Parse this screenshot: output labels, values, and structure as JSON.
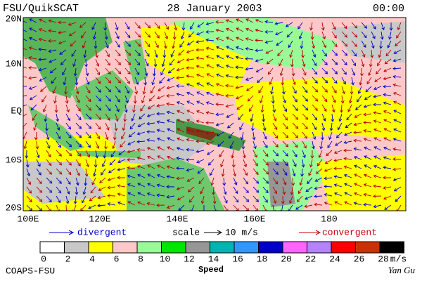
{
  "header": {
    "left": "FSU/QuikSCAT",
    "center": "28 January 2003",
    "right": "00:00"
  },
  "map": {
    "lat_labels": [
      "20N",
      "10N",
      "EQ",
      "10S",
      "20S"
    ],
    "lon_labels": [
      "100E",
      "120E",
      "140E",
      "160E",
      "180"
    ]
  },
  "legend": {
    "divergent": "divergent",
    "scale": "scale",
    "scale_value": "10 m/s",
    "convergent": "convergent"
  },
  "colorbar": {
    "ticks": [
      0,
      2,
      4,
      6,
      8,
      10,
      12,
      14,
      16,
      18,
      20,
      22,
      24,
      26,
      28
    ],
    "unit": "m/s",
    "label": "Speed",
    "colors": [
      "#ffffff",
      "#c8c8c8",
      "#ffff00",
      "#ffc8c8",
      "#98fb98",
      "#00e600",
      "#969696",
      "#00b4b4",
      "#3296ff",
      "#0000c8",
      "#ff64ff",
      "#b482ff",
      "#ff0000",
      "#c83200",
      "#000000"
    ]
  },
  "footer": {
    "left": "COAPS-FSU",
    "right": "Yan Gu"
  }
}
